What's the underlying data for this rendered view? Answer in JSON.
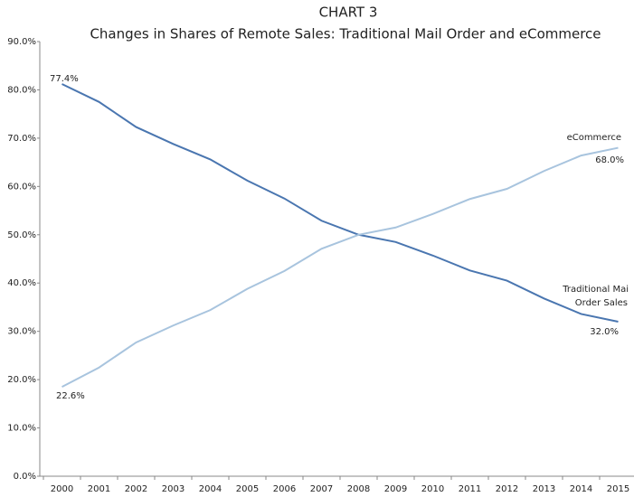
{
  "chart_data": {
    "type": "line",
    "title": "CHART 3",
    "subtitle": "Changes in Shares of Remote Sales: Traditional Mail Order and eCommerce",
    "categories": [
      "2000",
      "2001",
      "2002",
      "2003",
      "2004",
      "2005",
      "2006",
      "2007",
      "2008",
      "2009",
      "2010",
      "2011",
      "2012",
      "2013",
      "2014",
      "2015"
    ],
    "series": [
      {
        "name": "Traditional Mai Order Sales",
        "color": "#4a76b0",
        "values": [
          81.2,
          77.5,
          72.3,
          68.8,
          65.6,
          61.2,
          57.5,
          52.9,
          50.0,
          48.5,
          45.7,
          42.6,
          40.5,
          36.8,
          33.6,
          32.0
        ]
      },
      {
        "name": "eCommerce",
        "color": "#a8c4de",
        "values": [
          18.5,
          22.5,
          27.7,
          31.2,
          34.4,
          38.8,
          42.5,
          47.1,
          50.0,
          51.5,
          54.3,
          57.4,
          59.5,
          63.2,
          66.4,
          68.0
        ]
      }
    ],
    "annotations": [
      "77.4%",
      "22.6%",
      "eCommerce",
      "68.0%",
      "Traditional Mai",
      "Order Sales",
      "32.0%"
    ],
    "ylim": [
      0,
      90
    ],
    "yticks": [
      {
        "value": 0,
        "label": "0.0%"
      },
      {
        "value": 10,
        "label": "10.0%"
      },
      {
        "value": 20,
        "label": "20.0%"
      },
      {
        "value": 30,
        "label": "30.0%"
      },
      {
        "value": 40,
        "label": "40.0%"
      },
      {
        "value": 50,
        "label": "50.0%"
      },
      {
        "value": 60,
        "label": "60.0%"
      },
      {
        "value": 70,
        "label": "70.0%"
      },
      {
        "value": 80,
        "label": "80.0%"
      },
      {
        "value": 90,
        "label": "90.0%"
      }
    ],
    "grid": false
  }
}
